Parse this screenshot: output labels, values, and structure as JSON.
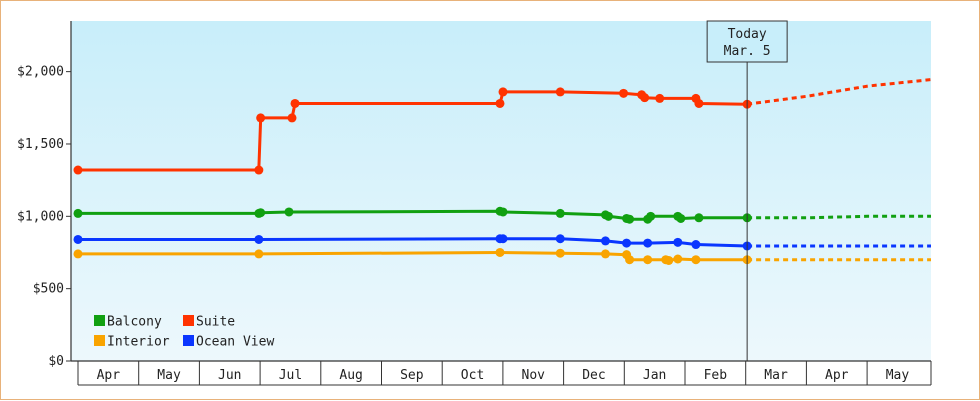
{
  "chart_data": {
    "type": "line",
    "y_ticks": [
      {
        "value": 0,
        "label": "$0"
      },
      {
        "value": 500,
        "label": "$500"
      },
      {
        "value": 1000,
        "label": "$1,000"
      },
      {
        "value": 1500,
        "label": "$1,500"
      },
      {
        "value": 2000,
        "label": "$2,000"
      }
    ],
    "ylim": [
      0,
      2350
    ],
    "xlim": [
      0,
      14.15
    ],
    "months": [
      "Apr",
      "May",
      "Jun",
      "Jul",
      "Aug",
      "Sep",
      "Oct",
      "Nov",
      "Dec",
      "Jan",
      "Feb",
      "Mar",
      "Apr",
      "May"
    ],
    "today": {
      "x": 11.1,
      "line1": "Today",
      "line2": "Mar. 5"
    },
    "legend_position": "bottom-left",
    "colors": {
      "Balcony": "#11a011",
      "Suite": "#ff3300",
      "Interior": "#f9a400",
      "Ocean View": "#0a36ff",
      "plot_top": "#c8eefa",
      "plot_bottom": "#edf8fc"
    },
    "series": [
      {
        "name": "Suite",
        "color": "#ff3300",
        "points": [
          [
            0.0,
            1320
          ],
          [
            3.0,
            1320
          ],
          [
            3.03,
            1680
          ],
          [
            3.55,
            1680
          ],
          [
            3.6,
            1780
          ],
          [
            7.0,
            1780
          ],
          [
            7.05,
            1860
          ],
          [
            8.0,
            1860
          ],
          [
            9.05,
            1850
          ],
          [
            9.35,
            1840
          ],
          [
            9.4,
            1820
          ],
          [
            9.65,
            1815
          ],
          [
            10.25,
            1815
          ],
          [
            10.3,
            1780
          ],
          [
            11.1,
            1775
          ]
        ],
        "forecast": [
          [
            11.1,
            1775
          ],
          [
            12.1,
            1830
          ],
          [
            13.1,
            1900
          ],
          [
            14.15,
            1945
          ]
        ]
      },
      {
        "name": "Balcony",
        "color": "#11a011",
        "points": [
          [
            0.0,
            1020
          ],
          [
            3.0,
            1020
          ],
          [
            3.03,
            1025
          ],
          [
            3.5,
            1030
          ],
          [
            7.0,
            1035
          ],
          [
            7.05,
            1030
          ],
          [
            8.0,
            1020
          ],
          [
            8.75,
            1010
          ],
          [
            8.8,
            1000
          ],
          [
            9.1,
            985
          ],
          [
            9.15,
            980
          ],
          [
            9.45,
            980
          ],
          [
            9.5,
            1000
          ],
          [
            9.95,
            1000
          ],
          [
            10.0,
            985
          ],
          [
            10.3,
            990
          ],
          [
            11.1,
            990
          ]
        ],
        "forecast": [
          [
            11.1,
            990
          ],
          [
            12.1,
            990
          ],
          [
            13.1,
            1000
          ],
          [
            14.15,
            1000
          ]
        ]
      },
      {
        "name": "Ocean View",
        "color": "#0a36ff",
        "points": [
          [
            0.0,
            840
          ],
          [
            3.0,
            840
          ],
          [
            7.0,
            845
          ],
          [
            7.05,
            845
          ],
          [
            8.0,
            845
          ],
          [
            8.75,
            830
          ],
          [
            9.1,
            815
          ],
          [
            9.45,
            815
          ],
          [
            9.95,
            820
          ],
          [
            10.25,
            805
          ],
          [
            11.1,
            795
          ]
        ],
        "forecast": [
          [
            11.1,
            795
          ],
          [
            12.1,
            795
          ],
          [
            13.1,
            795
          ],
          [
            14.15,
            795
          ]
        ]
      },
      {
        "name": "Interior",
        "color": "#f9a400",
        "points": [
          [
            0.0,
            740
          ],
          [
            3.0,
            740
          ],
          [
            7.0,
            750
          ],
          [
            8.0,
            745
          ],
          [
            8.75,
            740
          ],
          [
            9.1,
            735
          ],
          [
            9.15,
            700
          ],
          [
            9.45,
            700
          ],
          [
            9.75,
            700
          ],
          [
            9.8,
            695
          ],
          [
            9.95,
            705
          ],
          [
            10.25,
            700
          ],
          [
            11.1,
            700
          ]
        ],
        "forecast": [
          [
            11.1,
            700
          ],
          [
            12.1,
            700
          ],
          [
            13.1,
            700
          ],
          [
            14.15,
            700
          ]
        ]
      }
    ],
    "legend": [
      {
        "name": "Balcony",
        "color": "#11a011"
      },
      {
        "name": "Suite",
        "color": "#ff3300"
      },
      {
        "name": "Interior",
        "color": "#f9a400"
      },
      {
        "name": "Ocean View",
        "color": "#0a36ff"
      }
    ]
  }
}
